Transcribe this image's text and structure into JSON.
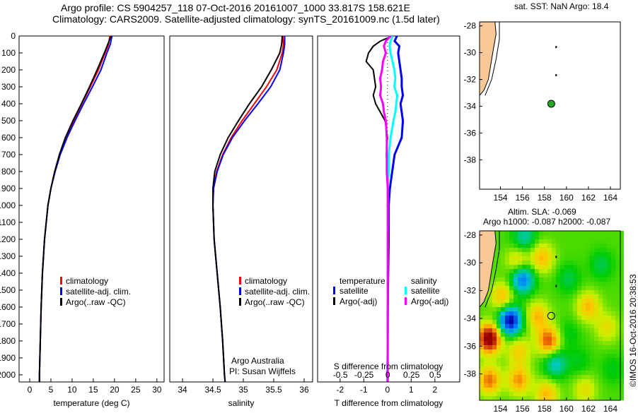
{
  "title_line1": "Argo profile: CS 5904257_118 07-Oct-2016 20161007_1000 33.817S 158.621E",
  "title_line2": "Climatology: CARS2009. Satellite-adjusted climatology: synTS_20161009.nc (1.5d later)",
  "credit": "Argo Australia",
  "pi": "PI: Susan Wijffels",
  "copyright": "©IMOS 16-Oct-2016 20:38:53",
  "colors": {
    "clim": "#ff0000",
    "sat": "#0000ff",
    "argo": "#000000",
    "sal_sat": "#00ffff",
    "sal_argo": "#ff00ff",
    "land": "#f8c898",
    "marker": "#22aa22"
  },
  "chart_data": [
    {
      "type": "line",
      "name": "temperature",
      "xlabel": "temperature (deg C)",
      "xlim": [
        -2.5,
        31.7
      ],
      "ylim": [
        2042,
        0
      ],
      "xticks": [
        "0",
        "5",
        "10",
        "15",
        "20",
        "25",
        "30"
      ],
      "yticks": [
        "0",
        "100",
        "200",
        "300",
        "400",
        "500",
        "600",
        "700",
        "800",
        "900",
        "1000",
        "1100",
        "1200",
        "1300",
        "1400",
        "1500",
        "1600",
        "1700",
        "1800",
        "1900",
        "2000"
      ],
      "legend": [
        "climatology",
        "satellite-adj. clim.",
        "Argo(..raw -QC)"
      ],
      "depth": [
        0,
        50,
        100,
        200,
        300,
        400,
        500,
        600,
        700,
        800,
        900,
        1000,
        1200,
        1400,
        1600,
        1800,
        2000,
        2040
      ],
      "series": [
        {
          "name": "climatology",
          "values": [
            18.9,
            18.6,
            17.8,
            16.2,
            14.3,
            12.3,
            10.4,
            8.6,
            7.1,
            5.9,
            5.0,
            4.3,
            3.5,
            3.0,
            2.7,
            2.5,
            2.3,
            2.3
          ]
        },
        {
          "name": "satellite-adj. clim.",
          "values": [
            19.4,
            19.0,
            18.2,
            16.8,
            14.8,
            12.7,
            10.7,
            8.8,
            7.2,
            6.0,
            5.0,
            4.3,
            3.5,
            3.0,
            2.7,
            2.5,
            2.3,
            2.3
          ]
        },
        {
          "name": "Argo",
          "values": [
            19.2,
            18.4,
            17.6,
            15.9,
            14.1,
            12.2,
            10.2,
            8.4,
            7.0,
            5.9,
            5.0,
            4.3,
            3.5,
            3.0,
            2.7,
            2.5,
            2.3,
            2.3
          ]
        }
      ]
    },
    {
      "type": "line",
      "name": "salinity",
      "xlabel": "salinity",
      "xlim": [
        33.79,
        36.14
      ],
      "ylim": [
        2042,
        0
      ],
      "xticks": [
        "34",
        "34.5",
        "35",
        "35.5",
        "36"
      ],
      "legend": [
        "climatology",
        "satellite-adj. clim.",
        "Argo(..raw -QC)"
      ],
      "depth": [
        0,
        50,
        100,
        200,
        300,
        400,
        500,
        600,
        700,
        800,
        900,
        1000,
        1200,
        1400,
        1600,
        1800,
        2000,
        2040
      ],
      "series": [
        {
          "name": "climatology",
          "values": [
            35.65,
            35.66,
            35.64,
            35.55,
            35.38,
            35.18,
            34.98,
            34.8,
            34.66,
            34.56,
            34.51,
            34.5,
            34.52,
            34.57,
            34.62,
            34.66,
            34.69,
            34.7
          ]
        },
        {
          "name": "satellite-adj. clim.",
          "values": [
            35.68,
            35.68,
            35.66,
            35.6,
            35.45,
            35.24,
            35.02,
            34.82,
            34.67,
            34.57,
            34.51,
            34.5,
            34.52,
            34.57,
            34.62,
            34.66,
            34.69,
            34.7
          ]
        },
        {
          "name": "Argo",
          "values": [
            35.64,
            35.63,
            35.6,
            35.46,
            35.3,
            35.1,
            34.92,
            34.75,
            34.62,
            34.53,
            34.5,
            34.5,
            34.52,
            34.57,
            34.62,
            34.66,
            34.69,
            34.7
          ]
        }
      ]
    },
    {
      "type": "line",
      "name": "difference",
      "xlabel": "T difference from climatology",
      "x2label": "S difference from climatology",
      "xlim": [
        -2.95,
        3.05
      ],
      "x2lim": [
        -0.74,
        0.76
      ],
      "ylim": [
        2042,
        0
      ],
      "xticks": [
        "-2",
        "-1",
        "0",
        "1",
        "2"
      ],
      "x2ticks": [
        "-0.5",
        "-0.25",
        "0",
        "0.25",
        "0.5"
      ],
      "legend": {
        "t_head": "temperature",
        "s_head": "salinity",
        "t_sat": "satellite",
        "t_argo": "Argo(-adj)",
        "s_sat": "satellite",
        "s_argo": "Argo(-adj)"
      },
      "depth": [
        0,
        30,
        60,
        100,
        150,
        200,
        250,
        300,
        350,
        400,
        450,
        500,
        600,
        700,
        800,
        900,
        1000,
        1200,
        1500,
        2000,
        2040
      ],
      "series": [
        {
          "name": "T satellite",
          "values": [
            0.4,
            0.3,
            0.5,
            0.45,
            0.5,
            0.55,
            0.6,
            0.6,
            0.65,
            0.55,
            0.6,
            0.65,
            0.6,
            0.3,
            0.2,
            0.1,
            0.05,
            0.05,
            0.02,
            0,
            0
          ]
        },
        {
          "name": "T Argo",
          "values": [
            0.2,
            -0.3,
            -0.6,
            -0.8,
            -0.9,
            -0.6,
            -0.55,
            -0.5,
            -0.6,
            -0.5,
            -0.3,
            -0.1,
            0,
            -0.05,
            0,
            0.02,
            0,
            0.05,
            0.03,
            0,
            0
          ]
        },
        {
          "name": "S satellite",
          "values": [
            0.05,
            0.03,
            0.02,
            0.03,
            0.05,
            0.07,
            0.08,
            0.07,
            0.1,
            0.09,
            0.08,
            0.06,
            0.03,
            0.01,
            0.01,
            0,
            0,
            0,
            0,
            0,
            0
          ]
        },
        {
          "name": "S Argo",
          "values": [
            0.03,
            -0.02,
            -0.04,
            -0.02,
            -0.05,
            -0.06,
            -0.08,
            -0.07,
            -0.08,
            -0.05,
            -0.04,
            -0.02,
            -0.01,
            -0.01,
            -0.01,
            0,
            0,
            0,
            0,
            0,
            0
          ]
        }
      ]
    },
    {
      "type": "heatmap",
      "name": "sst_map",
      "title": "sat. SST: NaN Argo: 18.4",
      "xlim": [
        152.1,
        164.9
      ],
      "ylim": [
        -40.2,
        -27.7
      ],
      "xticks": [
        "154",
        "156",
        "158",
        "160",
        "162",
        "164"
      ],
      "yticks": [
        "-28",
        "-30",
        "-32",
        "-34",
        "-36",
        "-38"
      ],
      "argo_position": [
        158.621,
        -33.817
      ]
    },
    {
      "type": "heatmap",
      "name": "sla_map",
      "title": "Altim. SLA: -0.069",
      "subtitle": "Argo h1000: -0.087 h2000: -0.087",
      "xlim": [
        152.1,
        164.9
      ],
      "ylim": [
        -39.9,
        -27.7
      ],
      "xticks": [
        "154",
        "156",
        "158",
        "160",
        "162",
        "164"
      ],
      "yticks": [
        "-28",
        "-30",
        "-32",
        "-34",
        "-36",
        "-38"
      ],
      "argo_position": [
        158.621,
        -33.817
      ],
      "features": [
        [
          155.8,
          -31,
          -1
        ],
        [
          154.7,
          -34,
          -1.4
        ],
        [
          158.8,
          -37.1,
          -0.6
        ],
        [
          156,
          -28,
          -0.5
        ],
        [
          152.8,
          -35.3,
          1.4
        ],
        [
          158.2,
          -35.5,
          0.9
        ],
        [
          161.8,
          -33,
          0.6
        ],
        [
          157.6,
          -29.5,
          0.6
        ],
        [
          155.5,
          -38.3,
          0.7
        ],
        [
          152.8,
          -38.3,
          0.8
        ],
        [
          157.2,
          -33.7,
          0.6
        ],
        [
          155.4,
          -29.8,
          0.5
        ],
        [
          163,
          -30,
          -0.3
        ],
        [
          160,
          -31,
          -0.3
        ],
        [
          161,
          -37,
          -0.2
        ],
        [
          160,
          -35,
          -0.2
        ],
        [
          163.5,
          -34.5,
          0.4
        ],
        [
          158,
          -39.3,
          0.6
        ],
        [
          154,
          -32.3,
          0.6
        ],
        [
          164,
          -37.5,
          -0.2
        ],
        [
          161.5,
          -39,
          0.4
        ],
        [
          155.5,
          -36.2,
          0.5
        ]
      ]
    }
  ]
}
